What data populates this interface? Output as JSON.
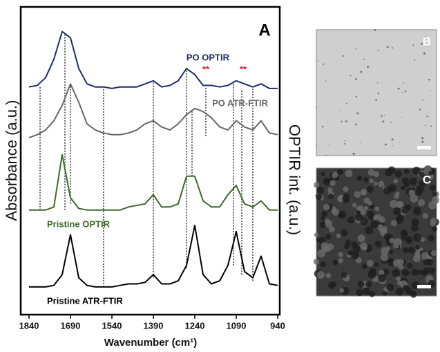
{
  "chart_data": {
    "type": "line",
    "panel_label": "A",
    "xlabel": "Wavenumber (cm¹)",
    "ylabel": "Absorbance (a.u.)",
    "y2label": "OPTIR int. (a.u.)",
    "x": [
      1840,
      1810,
      1780,
      1750,
      1720,
      1690,
      1660,
      1630,
      1600,
      1570,
      1540,
      1510,
      1480,
      1450,
      1420,
      1390,
      1360,
      1330,
      1300,
      1270,
      1240,
      1210,
      1180,
      1150,
      1120,
      1090,
      1060,
      1030,
      1000,
      970,
      940
    ],
    "xlim": [
      1840,
      940
    ],
    "xticks": [
      1840,
      1690,
      1540,
      1390,
      1240,
      1090,
      940
    ],
    "ylim": [
      0,
      10
    ],
    "series": [
      {
        "name": "PO OPTIR",
        "color": "#1b2a6b",
        "values": [
          7.4,
          7.45,
          7.7,
          8.3,
          9.2,
          9.0,
          8.0,
          7.5,
          7.4,
          7.4,
          7.35,
          7.4,
          7.4,
          7.4,
          7.5,
          7.6,
          7.4,
          7.45,
          7.6,
          8.0,
          7.8,
          7.45,
          7.45,
          7.4,
          7.45,
          7.6,
          7.5,
          7.4,
          7.5,
          7.35,
          7.35
        ]
      },
      {
        "name": "PO ATR-FTIR",
        "color": "#666666",
        "values": [
          5.75,
          5.85,
          6.0,
          6.3,
          6.8,
          7.5,
          6.9,
          6.2,
          6.0,
          5.9,
          5.85,
          5.85,
          5.9,
          6.0,
          6.2,
          6.3,
          6.1,
          6.0,
          6.2,
          6.5,
          6.7,
          6.6,
          6.4,
          6.1,
          6.0,
          6.3,
          6.1,
          6.0,
          6.3,
          5.9,
          5.85
        ]
      },
      {
        "name": "Pristine OPTIR",
        "color": "#3c6a2a",
        "values": [
          3.4,
          3.4,
          3.4,
          3.5,
          5.2,
          3.8,
          3.45,
          3.4,
          3.4,
          3.4,
          3.4,
          3.4,
          3.5,
          3.55,
          3.6,
          3.9,
          3.5,
          3.5,
          3.6,
          4.5,
          4.5,
          3.7,
          3.5,
          3.5,
          3.9,
          4.2,
          3.6,
          3.5,
          3.7,
          3.4,
          3.4
        ]
      },
      {
        "name": "Pristine ATR-FTIR",
        "color": "#000000",
        "values": [
          0.9,
          0.9,
          0.9,
          0.95,
          1.3,
          2.6,
          1.2,
          0.95,
          0.9,
          0.9,
          0.9,
          0.95,
          1.0,
          1.0,
          1.05,
          1.3,
          1.0,
          1.0,
          1.1,
          1.6,
          2.9,
          1.3,
          1.0,
          1.1,
          1.6,
          2.7,
          1.4,
          1.2,
          1.9,
          1.0,
          0.95
        ]
      }
    ],
    "annotations": [
      {
        "text": "**",
        "x": 1200,
        "y": 7.95,
        "color": "#e02020"
      },
      {
        "text": "**",
        "x": 1065,
        "y": 7.95,
        "color": "#e02020"
      }
    ],
    "vlines": [
      {
        "x": 1800,
        "y": [
          3.4,
          7.4
        ]
      },
      {
        "x": 1710,
        "y": [
          3.4,
          9.1
        ]
      },
      {
        "x": 1690,
        "y": [
          3.6,
          7.5
        ]
      },
      {
        "x": 1570,
        "y": [
          0.9,
          7.35
        ]
      },
      {
        "x": 1390,
        "y": [
          1.2,
          7.6
        ]
      },
      {
        "x": 1270,
        "y": [
          1.5,
          8.0
        ]
      },
      {
        "x": 1250,
        "y": [
          4.5,
          6.6
        ]
      },
      {
        "x": 1200,
        "y": [
          5.8,
          7.4
        ]
      },
      {
        "x": 1100,
        "y": [
          1.6,
          7.6
        ]
      },
      {
        "x": 1070,
        "y": [
          1.3,
          7.3
        ]
      },
      {
        "x": 1030,
        "y": [
          1.1,
          7.4
        ]
      }
    ]
  },
  "images": [
    {
      "label": "B"
    },
    {
      "label": "C"
    }
  ]
}
